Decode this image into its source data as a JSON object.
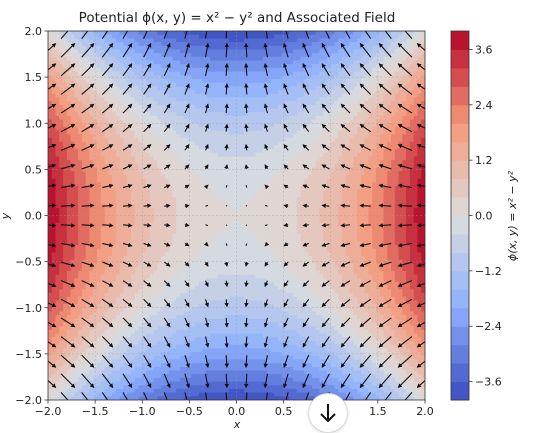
{
  "chart_data": {
    "type": "heatmap",
    "title": "Potential ϕ(x, y) = x² − y² and Associated Field",
    "xlabel": "x",
    "ylabel": "y",
    "xlim": [
      -2.0,
      2.0
    ],
    "ylim": [
      -2.0,
      2.0
    ],
    "x_ticks": [
      "−2.0",
      "−1.5",
      "−1.0",
      "−0.5",
      "0.0",
      "0.5",
      "1.0",
      "1.5",
      "2.0"
    ],
    "y_ticks": [
      "−2.0",
      "−1.5",
      "−1.0",
      "−0.5",
      "0.0",
      "0.5",
      "1.0",
      "1.5",
      "2.0"
    ],
    "potential": "x^2 - y^2",
    "field": "-grad(phi)",
    "contour_levels": 20,
    "colormap": "coolwarm",
    "color_range": [
      -4.0,
      4.0
    ],
    "grid": true,
    "quiver_grid": [
      20,
      20
    ],
    "colorbar": {
      "label": "ϕ(x, y) = x² − y²",
      "ticks": [
        "3.6",
        "2.4",
        "1.2",
        "0.0",
        "−1.2",
        "−2.4",
        "−3.6"
      ],
      "tick_values": [
        3.6,
        2.4,
        1.2,
        0.0,
        -1.2,
        -2.4,
        -3.6
      ]
    }
  },
  "ui": {
    "scroll_button_icon": "arrow-down-icon"
  }
}
